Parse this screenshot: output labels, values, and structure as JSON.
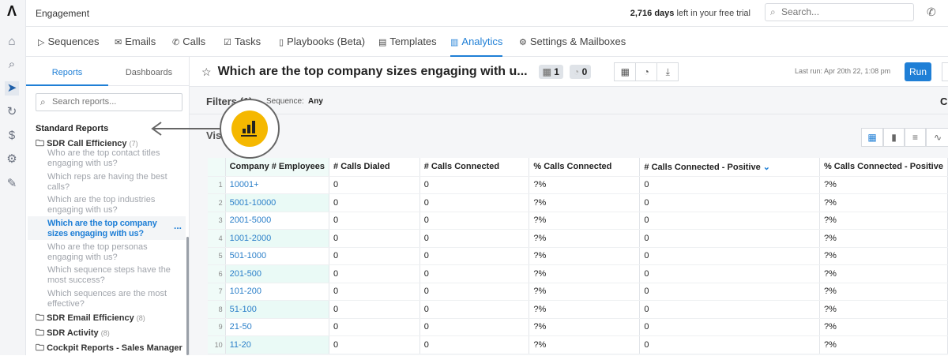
{
  "app": {
    "title": "Engagement",
    "trial_days": "2,716 days",
    "trial_text": "left in your free trial",
    "search_placeholder": "Search..."
  },
  "nav": [
    {
      "label": "Sequences",
      "icon": "send-icon"
    },
    {
      "label": "Emails",
      "icon": "mail-icon"
    },
    {
      "label": "Calls",
      "icon": "phone-icon"
    },
    {
      "label": "Tasks",
      "icon": "task-icon"
    },
    {
      "label": "Playbooks (Beta)",
      "icon": "book-icon"
    },
    {
      "label": "Templates",
      "icon": "document-icon"
    },
    {
      "label": "Analytics",
      "icon": "bar-chart-icon",
      "active": true
    },
    {
      "label": "Settings & Mailboxes",
      "icon": "gear-icon"
    }
  ],
  "sidebar": {
    "tabs": [
      "Reports",
      "Dashboards"
    ],
    "search_placeholder": "Search reports...",
    "section": "Standard Reports",
    "folders": [
      {
        "name": "SDR Call Efficiency",
        "count": "(7)"
      },
      {
        "name": "SDR Email Efficiency",
        "count": "(8)"
      },
      {
        "name": "SDR Activity",
        "count": "(8)"
      },
      {
        "name": "Cockpit Reports - Sales Manager",
        "count": ""
      }
    ],
    "reports": [
      "Who are the top contact titles engaging with us?",
      "Which reps are having the best calls?",
      "Which are the top industries engaging with us?",
      "Which are the top company sizes engaging with us?",
      "Who are the top personas engaging with us?",
      "Which sequence steps have the most success?",
      "Which sequences are the most effective?"
    ],
    "more": "..."
  },
  "report": {
    "title": "Which are the top company sizes engaging with u...",
    "badge1": "1",
    "badge2": "0",
    "last_run": "Last run: Apr 20th 22, 1:08 pm",
    "run": "Run",
    "filters": "Filters (1)",
    "filter_label": "Sequence:",
    "filter_value": "Any",
    "vis": "Visualization",
    "c": "C"
  },
  "table": {
    "headers": [
      "Company # Employees",
      "# Calls Dialed",
      "# Calls Connected",
      "% Calls Connected",
      "# Calls Connected - Positive",
      "% Calls Connected - Positive"
    ],
    "rows": [
      [
        "1",
        "10001+",
        "0",
        "0",
        "?%",
        "0",
        "?%"
      ],
      [
        "2",
        "5001-10000",
        "0",
        "0",
        "?%",
        "0",
        "?%"
      ],
      [
        "3",
        "2001-5000",
        "0",
        "0",
        "?%",
        "0",
        "?%"
      ],
      [
        "4",
        "1001-2000",
        "0",
        "0",
        "?%",
        "0",
        "?%"
      ],
      [
        "5",
        "501-1000",
        "0",
        "0",
        "?%",
        "0",
        "?%"
      ],
      [
        "6",
        "201-500",
        "0",
        "0",
        "?%",
        "0",
        "?%"
      ],
      [
        "7",
        "101-200",
        "0",
        "0",
        "?%",
        "0",
        "?%"
      ],
      [
        "8",
        "51-100",
        "0",
        "0",
        "?%",
        "0",
        "?%"
      ],
      [
        "9",
        "21-50",
        "0",
        "0",
        "?%",
        "0",
        "?%"
      ],
      [
        "10",
        "11-20",
        "0",
        "0",
        "?%",
        "0",
        "?%"
      ]
    ]
  },
  "colors": {
    "accent": "#1f7fd6",
    "highlight": "#f5b800"
  }
}
